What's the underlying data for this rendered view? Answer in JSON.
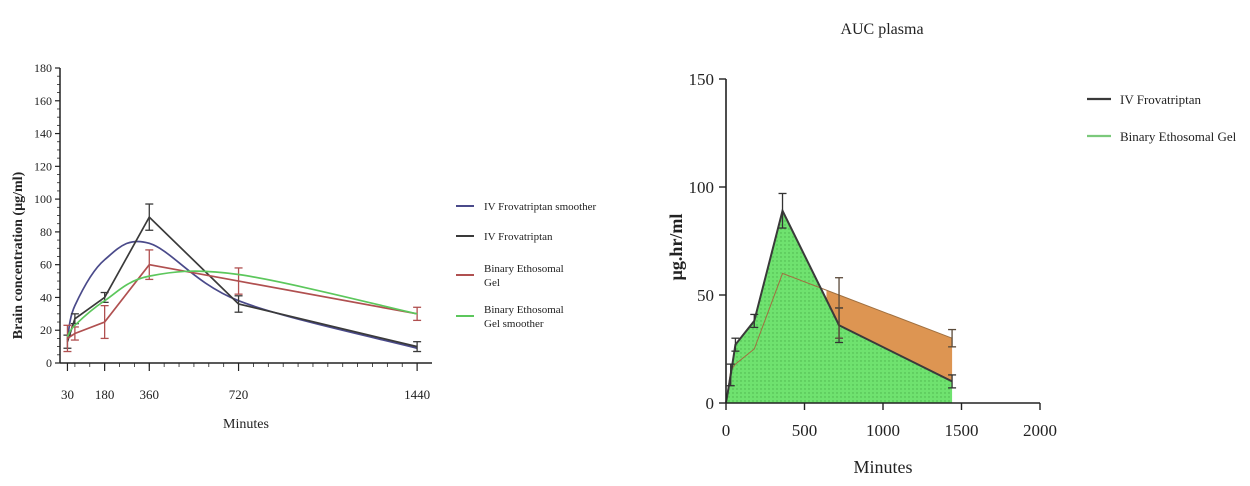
{
  "chart_data": [
    {
      "type": "line",
      "title": "",
      "xlabel": "Minutes",
      "ylabel": "Brain concentration (µg/ml)",
      "xlim": [
        0,
        1500
      ],
      "ylim": [
        0,
        180
      ],
      "xticks": [
        30,
        180,
        360,
        720,
        1440
      ],
      "yticks": [
        0,
        20,
        40,
        60,
        80,
        100,
        120,
        140,
        160,
        180
      ],
      "legend_position": "right",
      "series": [
        {
          "name": "IV Frovatriptan smoother",
          "color": "#4a4a8a",
          "style": "smooth",
          "x": [
            30,
            60,
            180,
            360,
            720,
            1440
          ],
          "y": [
            14,
            35,
            63,
            73,
            38,
            9
          ]
        },
        {
          "name": "IV Frovatriptan",
          "color": "#3a3a3a",
          "style": "line",
          "x": [
            30,
            60,
            180,
            360,
            720,
            1440
          ],
          "y": [
            13,
            27,
            40,
            89,
            36,
            10
          ],
          "err": [
            4,
            3,
            3,
            8,
            5,
            3
          ]
        },
        {
          "name": "Binary Ethosomal Gel",
          "color": "#b05050",
          "style": "line",
          "x": [
            30,
            60,
            180,
            360,
            720,
            1440
          ],
          "y": [
            15,
            18,
            25,
            60,
            50,
            30
          ],
          "err": [
            8,
            4,
            10,
            9,
            8,
            4
          ]
        },
        {
          "name": "Binary Ethosomal Gel smoother",
          "color": "#5cc75c",
          "style": "smooth",
          "x": [
            30,
            60,
            180,
            360,
            720,
            1440
          ],
          "y": [
            16,
            23,
            38,
            53,
            54,
            30
          ]
        }
      ]
    },
    {
      "type": "area",
      "title": "AUC plasma",
      "xlabel": "Minutes",
      "ylabel": "µg.hr/ml",
      "xlim": [
        0,
        2000
      ],
      "ylim": [
        0,
        150
      ],
      "xticks": [
        0,
        500,
        1000,
        1500,
        2000
      ],
      "yticks": [
        0,
        50,
        100,
        150
      ],
      "legend_position": "top-right",
      "series": [
        {
          "name": "IV Frovatriptan",
          "color": "#3a3a3a",
          "fill": "#6fe26f",
          "x": [
            0,
            30,
            60,
            180,
            360,
            720,
            1440
          ],
          "y": [
            0,
            13,
            27,
            38,
            89,
            36,
            10
          ],
          "err": [
            0,
            5,
            3,
            3,
            8,
            8,
            3
          ]
        },
        {
          "name": "Binary Ethosomal Gel",
          "color": "#7bc97b",
          "fill": "#d98a3f",
          "x": [
            0,
            30,
            60,
            180,
            360,
            720,
            1440
          ],
          "y": [
            0,
            15,
            18,
            25,
            60,
            50,
            30
          ],
          "err": [
            0,
            3,
            3,
            5,
            8,
            8,
            4
          ]
        }
      ]
    }
  ]
}
